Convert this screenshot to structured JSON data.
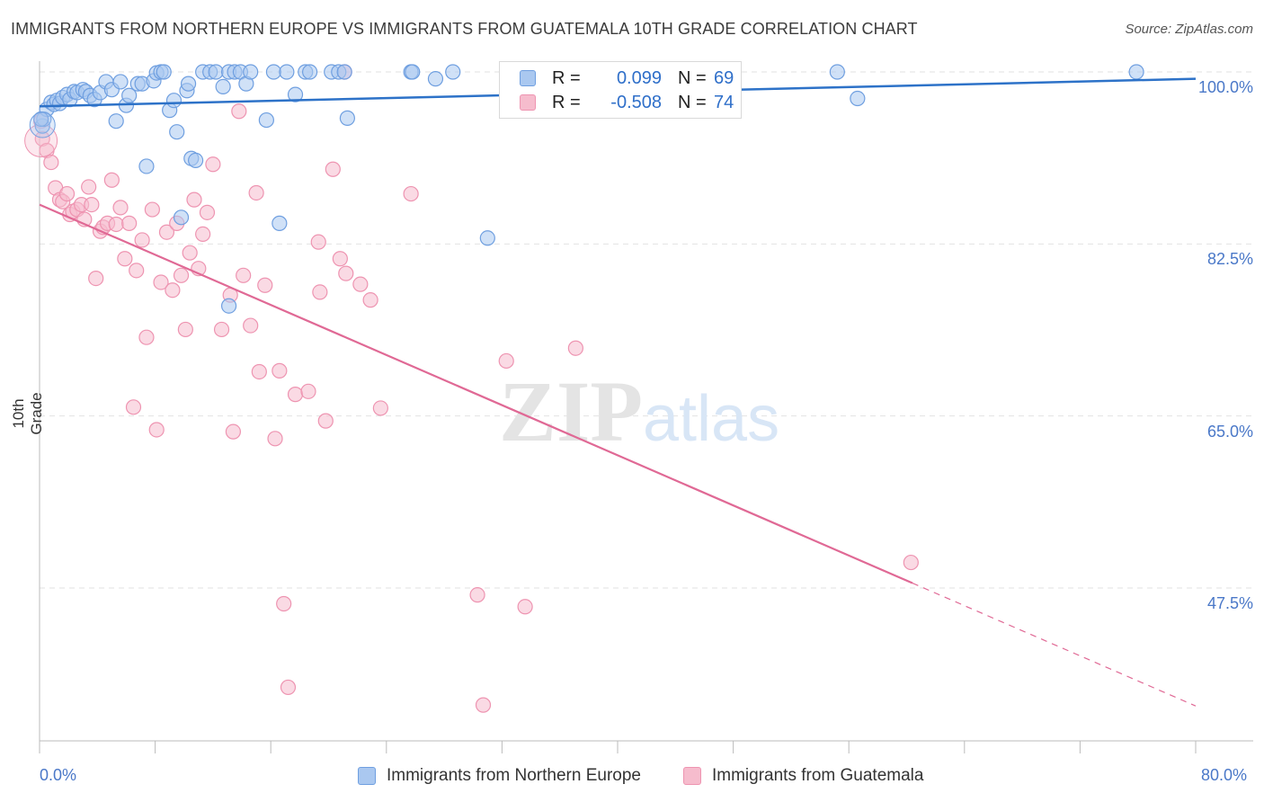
{
  "title": "IMMIGRANTS FROM NORTHERN EUROPE VS IMMIGRANTS FROM GUATEMALA 10TH GRADE CORRELATION CHART",
  "source": "Source: ZipAtlas.com",
  "watermark": "ZIPatlas",
  "colors": {
    "blue_fill": "#aac8f0",
    "blue_stroke": "#6f9fe0",
    "blue_line": "#2d72c8",
    "pink_fill": "#f6bccd",
    "pink_stroke": "#ee94b1",
    "pink_line": "#e06995",
    "axis_label": "#4a78c8"
  },
  "legend": {
    "rows": [
      {
        "r_label": "R =",
        "r_value": "0.099",
        "n_label": "N =",
        "n_value": "69"
      },
      {
        "r_label": "R =",
        "r_value": "-0.508",
        "n_label": "N =",
        "n_value": "74"
      }
    ],
    "series": [
      "Immigrants from Northern Europe",
      "Immigrants from Guatemala"
    ]
  },
  "chart_data": {
    "type": "scatter",
    "xlabel": "",
    "ylabel": "10th Grade",
    "xlim": [
      0,
      80
    ],
    "ylim": [
      33,
      101.5
    ],
    "x_tick_labels": [
      "0.0%",
      "80.0%"
    ],
    "y_tick_values": [
      100,
      82.5,
      65,
      47.5
    ],
    "y_tick_labels": [
      "100.0%",
      "82.5%",
      "65.0%",
      "47.5%"
    ],
    "grid": true,
    "series": [
      {
        "name": "Immigrants from Northern Europe",
        "trend": {
          "x0": 0,
          "y0": 96.5,
          "x1": 80,
          "y1": 99.3
        },
        "points": [
          [
            0.2,
            94.5
          ],
          [
            0.3,
            95.2
          ],
          [
            0.5,
            96.2
          ],
          [
            0.8,
            96.9
          ],
          [
            1.0,
            96.7
          ],
          [
            1.2,
            97.1
          ],
          [
            1.4,
            96.8
          ],
          [
            1.6,
            97.4
          ],
          [
            1.9,
            97.7
          ],
          [
            2.1,
            97.2
          ],
          [
            2.4,
            98.0
          ],
          [
            2.6,
            97.9
          ],
          [
            3.0,
            98.2
          ],
          [
            3.2,
            98.0
          ],
          [
            3.5,
            97.6
          ],
          [
            3.8,
            97.2
          ],
          [
            4.2,
            97.9
          ],
          [
            4.6,
            99.0
          ],
          [
            5.0,
            98.2
          ],
          [
            5.3,
            95.0
          ],
          [
            5.6,
            99.0
          ],
          [
            6.0,
            96.6
          ],
          [
            6.2,
            97.6
          ],
          [
            6.8,
            98.8
          ],
          [
            7.1,
            98.8
          ],
          [
            7.4,
            90.4
          ],
          [
            7.9,
            99.1
          ],
          [
            8.1,
            99.9
          ],
          [
            8.4,
            100.0
          ],
          [
            8.6,
            100.0
          ],
          [
            9.0,
            96.1
          ],
          [
            9.3,
            97.1
          ],
          [
            9.5,
            93.9
          ],
          [
            9.8,
            85.2
          ],
          [
            10.2,
            98.1
          ],
          [
            10.3,
            98.8
          ],
          [
            10.5,
            91.2
          ],
          [
            10.8,
            91.0
          ],
          [
            11.3,
            100.0
          ],
          [
            11.8,
            100.0
          ],
          [
            12.2,
            100.0
          ],
          [
            12.7,
            98.5
          ],
          [
            13.1,
            100.0
          ],
          [
            13.5,
            100.0
          ],
          [
            13.9,
            100.0
          ],
          [
            14.3,
            98.8
          ],
          [
            14.6,
            100.0
          ],
          [
            13.1,
            76.2
          ],
          [
            15.7,
            95.1
          ],
          [
            16.2,
            100.0
          ],
          [
            16.6,
            84.6
          ],
          [
            17.1,
            100.0
          ],
          [
            17.7,
            97.7
          ],
          [
            18.4,
            100.0
          ],
          [
            18.7,
            100.0
          ],
          [
            20.2,
            100.0
          ],
          [
            20.7,
            100.0
          ],
          [
            21.1,
            100.0
          ],
          [
            21.3,
            95.3
          ],
          [
            25.7,
            100.0
          ],
          [
            25.8,
            100.0
          ],
          [
            27.4,
            99.3
          ],
          [
            28.6,
            100.0
          ],
          [
            31.0,
            83.1
          ],
          [
            33.3,
            100.0
          ],
          [
            55.2,
            100.0
          ],
          [
            56.6,
            97.3
          ],
          [
            75.9,
            100.0
          ],
          [
            0.1,
            95.2
          ]
        ]
      },
      {
        "name": "Immigrants from Guatemala",
        "trend": {
          "x0": 0,
          "y0": 86.5,
          "x1": 60.4,
          "y1": 48.0,
          "dash_x1": 80,
          "dash_y1": 35.5
        },
        "points": [
          [
            0.2,
            93.2
          ],
          [
            0.5,
            92.0
          ],
          [
            0.8,
            90.8
          ],
          [
            1.1,
            88.2
          ],
          [
            1.4,
            87.0
          ],
          [
            1.6,
            86.8
          ],
          [
            1.9,
            87.6
          ],
          [
            2.1,
            85.5
          ],
          [
            2.3,
            85.8
          ],
          [
            2.6,
            86.0
          ],
          [
            2.9,
            86.5
          ],
          [
            3.1,
            85.0
          ],
          [
            3.4,
            88.3
          ],
          [
            3.6,
            86.5
          ],
          [
            3.9,
            79.0
          ],
          [
            4.2,
            83.8
          ],
          [
            4.4,
            84.2
          ],
          [
            4.7,
            84.6
          ],
          [
            5.0,
            89.0
          ],
          [
            5.3,
            84.5
          ],
          [
            5.6,
            86.2
          ],
          [
            5.9,
            81.0
          ],
          [
            6.2,
            84.6
          ],
          [
            6.5,
            65.9
          ],
          [
            6.7,
            79.8
          ],
          [
            7.1,
            82.9
          ],
          [
            7.4,
            73.0
          ],
          [
            7.8,
            86.0
          ],
          [
            8.1,
            63.6
          ],
          [
            8.4,
            78.6
          ],
          [
            8.8,
            83.7
          ],
          [
            9.2,
            77.8
          ],
          [
            9.5,
            84.6
          ],
          [
            9.8,
            79.3
          ],
          [
            10.1,
            73.8
          ],
          [
            10.4,
            81.6
          ],
          [
            10.7,
            87.0
          ],
          [
            11.0,
            80.0
          ],
          [
            11.3,
            83.5
          ],
          [
            11.6,
            85.7
          ],
          [
            12.0,
            90.6
          ],
          [
            12.6,
            73.8
          ],
          [
            13.2,
            77.3
          ],
          [
            13.4,
            63.4
          ],
          [
            13.8,
            96.0
          ],
          [
            14.1,
            79.3
          ],
          [
            14.6,
            74.2
          ],
          [
            15.0,
            87.7
          ],
          [
            15.2,
            69.5
          ],
          [
            15.6,
            78.3
          ],
          [
            16.3,
            62.7
          ],
          [
            16.6,
            69.6
          ],
          [
            16.9,
            45.9
          ],
          [
            17.2,
            37.4
          ],
          [
            17.7,
            67.2
          ],
          [
            18.6,
            67.5
          ],
          [
            19.3,
            82.7
          ],
          [
            19.4,
            77.6
          ],
          [
            19.8,
            64.5
          ],
          [
            20.3,
            90.1
          ],
          [
            20.8,
            81.0
          ],
          [
            21.2,
            79.5
          ],
          [
            22.2,
            78.4
          ],
          [
            22.9,
            76.8
          ],
          [
            23.6,
            65.8
          ],
          [
            25.7,
            87.6
          ],
          [
            30.3,
            46.8
          ],
          [
            30.7,
            35.6
          ],
          [
            32.3,
            70.6
          ],
          [
            33.6,
            45.6
          ],
          [
            37.1,
            71.9
          ],
          [
            60.3,
            50.1
          ],
          [
            0.1,
            95.0
          ],
          [
            21.1,
            100.0
          ]
        ]
      }
    ]
  }
}
